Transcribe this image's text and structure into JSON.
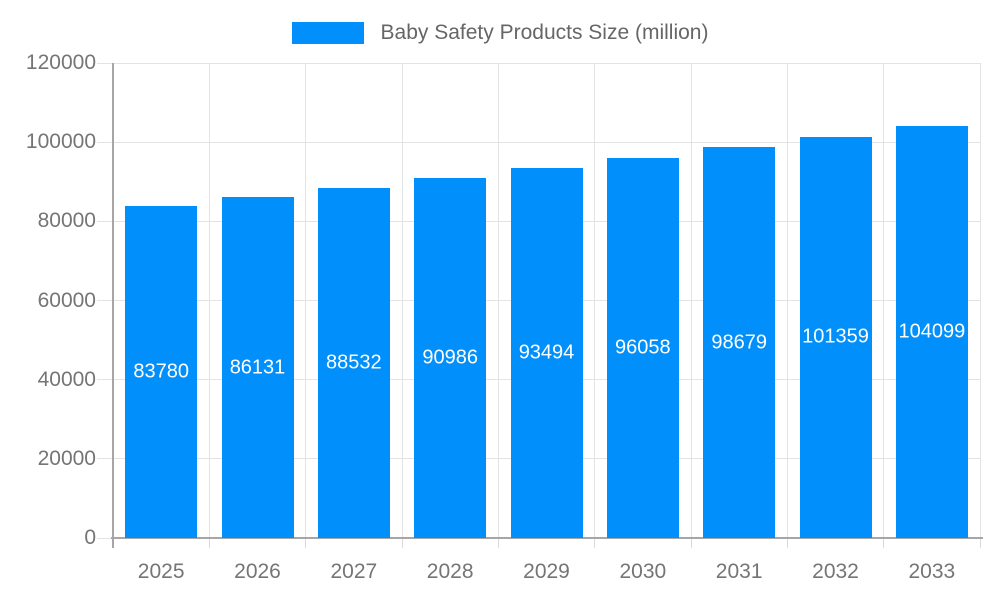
{
  "legend": {
    "label": "Baby Safety Products Size (million)",
    "swatch_color": "#008FFB"
  },
  "chart_data": {
    "type": "bar",
    "title": "Baby Safety Products Size (million)",
    "categories": [
      "2025",
      "2026",
      "2027",
      "2028",
      "2029",
      "2030",
      "2031",
      "2032",
      "2033"
    ],
    "series": [
      {
        "name": "Baby Safety Products Size (million)",
        "values": [
          83780,
          86131,
          88532,
          90986,
          93494,
          96058,
          98679,
          101359,
          104099
        ]
      }
    ],
    "value_labels_shown": true,
    "xlabel": "",
    "ylabel": "",
    "ylim": [
      0,
      120000
    ],
    "yticks": [
      0,
      20000,
      40000,
      60000,
      80000,
      100000,
      120000
    ],
    "grid": true,
    "legend_position": "top"
  },
  "colors": {
    "bar": "#008FFB",
    "value_label": "#FFFFFF",
    "grid": "#E3E3E6",
    "tick_outside": "#D9D9DC",
    "axis": "#A6A6A6",
    "axis_label": "#757575",
    "legend_text": "#666666",
    "background": "#FFFFFF"
  }
}
